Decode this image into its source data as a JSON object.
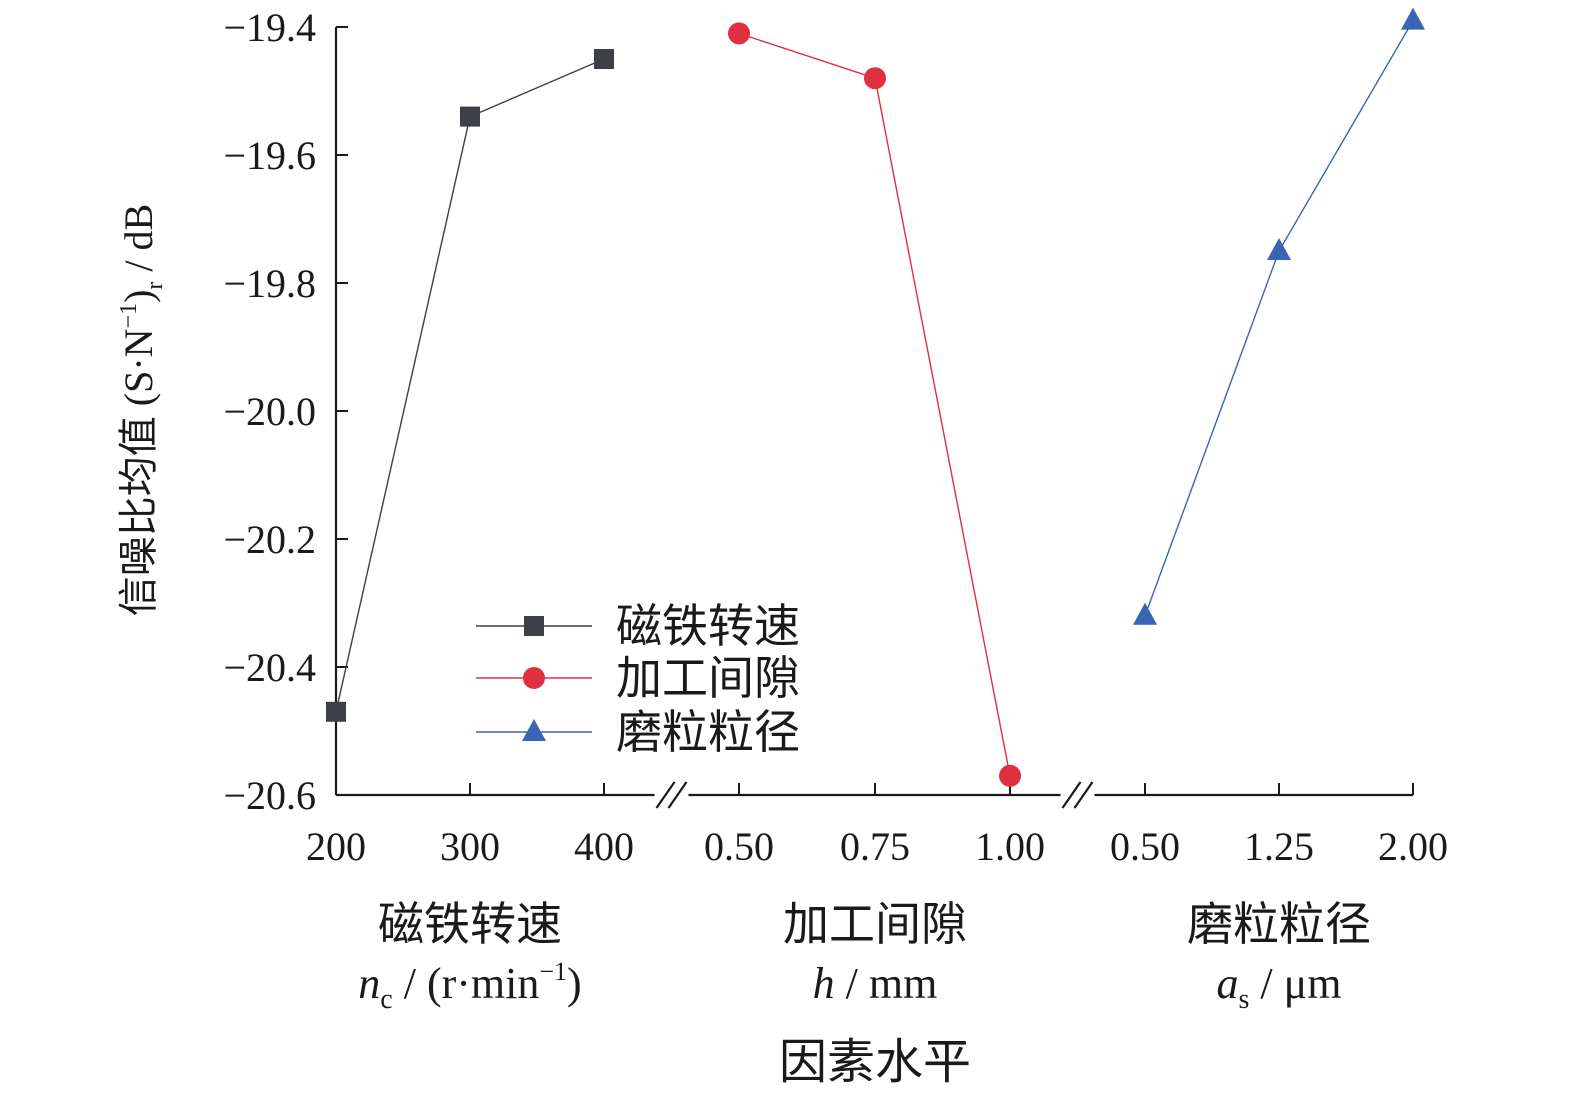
{
  "chart_data": {
    "type": "line",
    "ylabel": "信噪比均值 (S·N⁻¹)ᵣ / dB",
    "ylabel_parts": {
      "main": "信噪比均值 (S·N",
      "sup": "−1",
      "close": ")",
      "sub": "r",
      "unit": " / dB"
    },
    "xlabel": "因素水平",
    "ylim": [
      -20.6,
      -19.4
    ],
    "yticks": [
      -19.4,
      -19.6,
      -19.8,
      -20.0,
      -20.2,
      -20.4,
      -20.6
    ],
    "ytick_labels": [
      "−19.4",
      "−19.6",
      "−19.8",
      "−20.0",
      "−20.2",
      "−20.4",
      "−20.6"
    ],
    "axis_breaks": true,
    "grid": false,
    "legend_position": "lower-center",
    "groups": [
      {
        "name": "磁铁转速",
        "var_symbol": "n",
        "var_sub": "c",
        "unit_text": " / (r·min",
        "unit_sup": "−1",
        "unit_close": ")",
        "categories": [
          "200",
          "300",
          "400"
        ]
      },
      {
        "name": "加工间隙",
        "var_symbol": "h",
        "var_sub": "",
        "unit_text": " / mm",
        "unit_sup": "",
        "unit_close": "",
        "categories": [
          "0.50",
          "0.75",
          "1.00"
        ]
      },
      {
        "name": "磨粒粒径",
        "var_symbol": "a",
        "var_sub": "s",
        "unit_text": " / μm",
        "unit_sup": "",
        "unit_close": "",
        "categories": [
          "0.50",
          "1.25",
          "2.00"
        ]
      }
    ],
    "series": [
      {
        "name": "磁铁转速",
        "group": 0,
        "marker": "square",
        "color": "#3d4046",
        "values": [
          -20.47,
          -19.54,
          -19.45
        ]
      },
      {
        "name": "加工间隙",
        "group": 1,
        "marker": "circle",
        "color": "#e03040",
        "values": [
          -19.41,
          -19.48,
          -20.57
        ]
      },
      {
        "name": "磨粒粒径",
        "group": 2,
        "marker": "triangle",
        "color": "#3a64b4",
        "values": [
          -20.32,
          -19.75,
          -19.39
        ]
      }
    ]
  }
}
